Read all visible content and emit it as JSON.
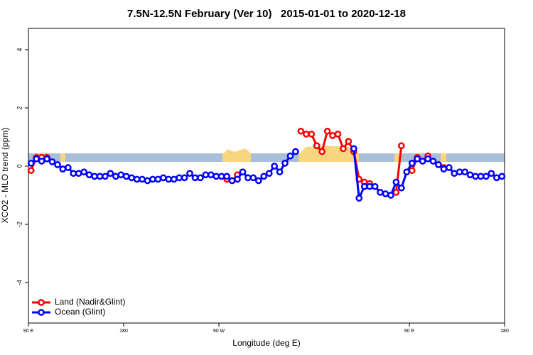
{
  "chart_data": {
    "type": "line",
    "title": "7.5N-12.5N February (Ver 10)   2015-01-01 to 2020-12-18",
    "xlabel": "Longitude (deg E)",
    "ylabel": "XCO2 - MLO trend (ppm)",
    "xlim": [
      90,
      540
    ],
    "ylim": [
      -5.39,
      4.73
    ],
    "xticks": [
      {
        "value": 90,
        "label": "90 E"
      },
      180,
      {
        "value": 270,
        "label": "90 W"
      },
      {
        "value": 450,
        "label": "90 E"
      },
      {
        "value": 540,
        "label": "180"
      }
    ],
    "yticks": [
      -4,
      -2,
      0,
      2,
      4
    ],
    "legend": "bottom-left",
    "x": [
      92.5,
      97.5,
      102.5,
      107.5,
      112.5,
      117.5,
      122.5,
      127.5,
      132.5,
      137.5,
      142.5,
      147.5,
      152.5,
      157.5,
      162.5,
      167.5,
      172.5,
      177.5,
      182.5,
      187.5,
      192.5,
      197.5,
      202.5,
      207.5,
      212.5,
      217.5,
      222.5,
      227.5,
      232.5,
      237.5,
      242.5,
      247.5,
      252.5,
      257.5,
      262.5,
      267.5,
      272.5,
      277.5,
      282.5,
      287.5,
      292.5,
      297.5,
      302.5,
      307.5,
      312.5,
      317.5,
      322.5,
      327.5,
      332.5,
      337.5,
      342.5,
      347.5,
      352.5,
      357.5,
      362.5,
      367.5,
      372.5,
      377.5,
      382.5,
      387.5,
      392.5,
      397.5,
      402.5,
      407.5,
      412.5,
      417.5,
      422.5,
      427.5,
      432.5,
      437.5,
      442.5,
      447.5,
      452.5,
      457.5,
      462.5,
      467.5,
      472.5,
      477.5,
      482.5,
      487.5,
      492.5,
      497.5,
      502.5,
      507.5,
      512.5,
      517.5,
      522.5,
      527.5,
      532.5,
      537.5
    ],
    "series": [
      {
        "name": "Land (Nadir&Glint)",
        "color": "#ff0000",
        "values": [
          -0.15,
          0.3,
          0.3,
          0.3,
          null,
          null,
          -0.1,
          null,
          null,
          null,
          null,
          null,
          null,
          null,
          null,
          null,
          null,
          null,
          null,
          null,
          null,
          null,
          null,
          null,
          null,
          null,
          null,
          null,
          null,
          null,
          null,
          null,
          null,
          null,
          null,
          null,
          null,
          -0.45,
          -0.5,
          -0.3,
          -0.2,
          null,
          null,
          null,
          null,
          null,
          null,
          null,
          null,
          null,
          null,
          1.2,
          1.1,
          1.1,
          0.7,
          0.5,
          1.2,
          1.05,
          1.1,
          0.6,
          0.85,
          0.5,
          -0.45,
          -0.55,
          -0.6,
          null,
          null,
          null,
          null,
          -0.9,
          0.7,
          null,
          -0.15,
          0.3,
          null,
          0.35,
          null,
          0.05,
          -0.05,
          null,
          null,
          null,
          null,
          null,
          null,
          null,
          null,
          null,
          null,
          null
        ]
      },
      {
        "name": "Ocean (Glint)",
        "color": "#0000ff",
        "values": [
          0.1,
          0.25,
          0.17,
          0.25,
          0.15,
          0.05,
          -0.1,
          -0.05,
          -0.25,
          -0.25,
          -0.2,
          -0.3,
          -0.35,
          -0.35,
          -0.35,
          -0.25,
          -0.35,
          -0.3,
          -0.35,
          -0.4,
          -0.45,
          -0.45,
          -0.5,
          -0.45,
          -0.45,
          -0.4,
          -0.45,
          -0.45,
          -0.4,
          -0.4,
          -0.25,
          -0.4,
          -0.4,
          -0.3,
          -0.3,
          -0.35,
          -0.35,
          -0.35,
          -0.5,
          -0.45,
          -0.2,
          -0.4,
          -0.4,
          -0.5,
          -0.35,
          -0.25,
          0,
          -0.2,
          0.1,
          0.35,
          0.5,
          null,
          null,
          null,
          null,
          null,
          null,
          null,
          null,
          null,
          null,
          0.6,
          -1.1,
          -0.7,
          -0.7,
          -0.7,
          -0.9,
          -0.95,
          -1.0,
          -0.55,
          -0.75,
          -0.2,
          0.1,
          0.25,
          0.17,
          0.25,
          0.17,
          0.05,
          -0.1,
          -0.05,
          -0.25,
          -0.2,
          -0.2,
          -0.3,
          -0.35,
          -0.35,
          -0.35,
          -0.25,
          -0.4,
          -0.35
        ]
      }
    ]
  }
}
